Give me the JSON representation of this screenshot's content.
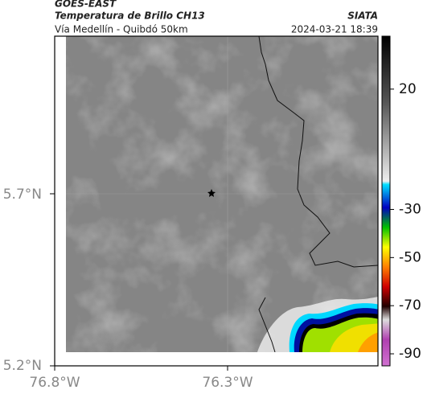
{
  "header": {
    "source": "GOES-EAST",
    "product": "Temperatura de Brillo CH13",
    "route": "Vía Medellín - Quibdó 50km",
    "agency": "SIATA",
    "timestamp": "2024-03-21 18:39"
  },
  "map": {
    "yticks": [
      "5.7°N",
      "5.2°N"
    ],
    "xticks": [
      "76.8°W",
      "76.3°W"
    ]
  },
  "colorbar": {
    "range": [
      -95,
      42
    ],
    "ticks": [
      20,
      -30,
      -50,
      -70,
      -90
    ]
  }
}
